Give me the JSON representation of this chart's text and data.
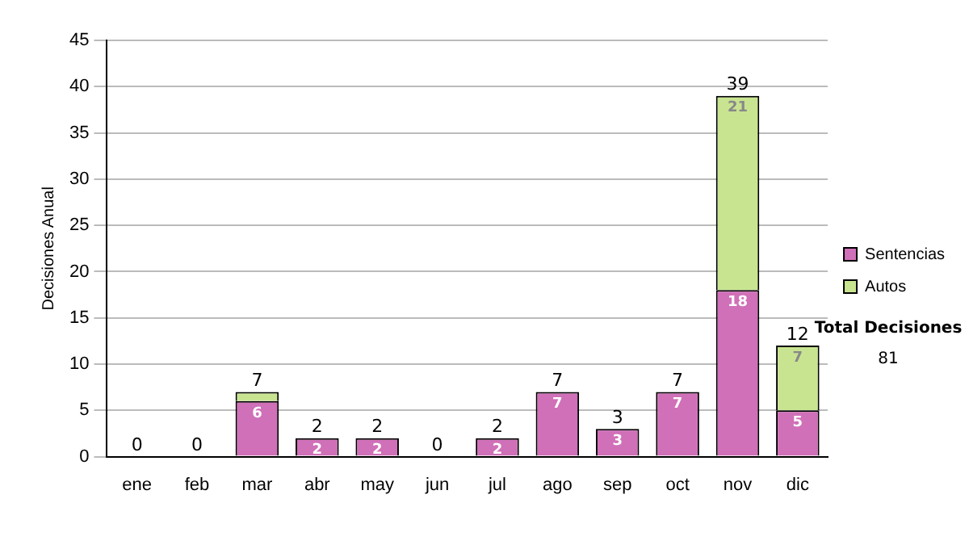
{
  "chart_data": {
    "type": "bar",
    "stacked": true,
    "ylabel": "Decisiones Anual",
    "categories": [
      "ene",
      "feb",
      "mar",
      "abr",
      "may",
      "jun",
      "jul",
      "ago",
      "sep",
      "oct",
      "nov",
      "dic"
    ],
    "series": [
      {
        "name": "Sentencias",
        "color": "#d070b8",
        "values": [
          0,
          0,
          6,
          2,
          2,
          0,
          2,
          7,
          3,
          7,
          18,
          5
        ],
        "value_labels": [
          null,
          null,
          "6",
          "2",
          "2",
          null,
          "2",
          "7",
          "3",
          "7",
          "18",
          "5"
        ]
      },
      {
        "name": "Autos",
        "color": "#c8e490",
        "values": [
          0,
          0,
          1,
          0,
          0,
          0,
          0,
          0,
          0,
          0,
          21,
          7
        ],
        "value_labels": [
          null,
          null,
          null,
          null,
          null,
          null,
          null,
          null,
          null,
          null,
          "21",
          "7"
        ]
      }
    ],
    "totals": [
      "0",
      "0",
      "7",
      "2",
      "2",
      "0",
      "2",
      "7",
      "3",
      "7",
      "39",
      "12"
    ],
    "ylim": [
      0,
      45
    ],
    "yticks": [
      0,
      5,
      10,
      15,
      20,
      25,
      30,
      35,
      40,
      45
    ],
    "grid": "y",
    "legend": "right",
    "annotations": [
      "Total Decisiones",
      "81"
    ]
  }
}
